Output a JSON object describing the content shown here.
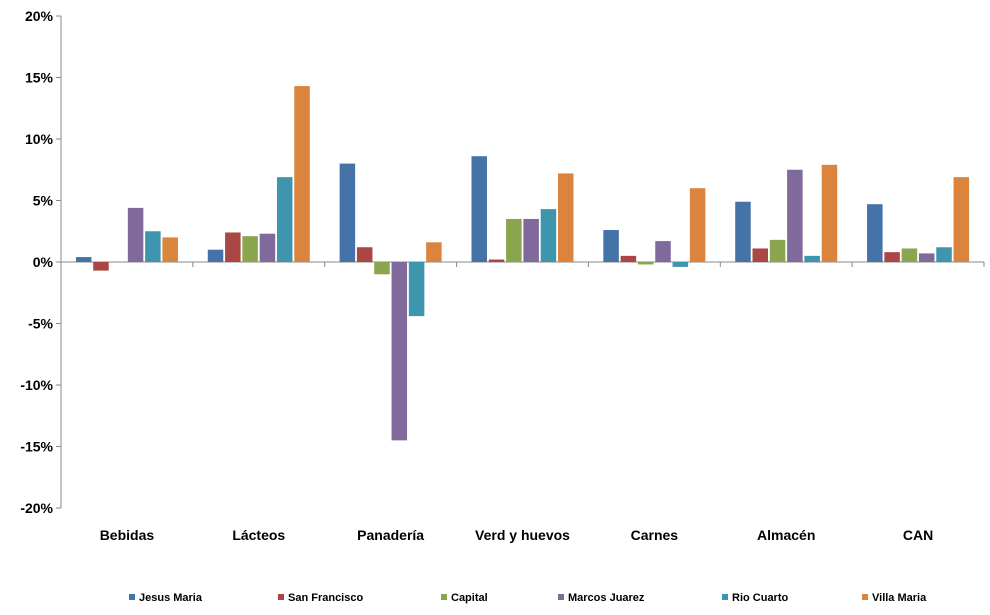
{
  "chart_data": {
    "type": "bar",
    "title": "",
    "xlabel": "",
    "ylabel": "",
    "ylim": [
      -20,
      20
    ],
    "y_ticks": [
      -20,
      -15,
      -10,
      -5,
      0,
      5,
      10,
      15,
      20
    ],
    "y_tick_labels": [
      "-20%",
      "-15%",
      "-10%",
      "-5%",
      "0%",
      "5%",
      "10%",
      "15%",
      "20%"
    ],
    "grid": false,
    "legend_position": "bottom",
    "categories": [
      "Bebidas",
      "Lácteos",
      "Panadería",
      "Verd y huevos",
      "Carnes",
      "Almacén",
      "CAN"
    ],
    "series": [
      {
        "name": "Jesus Maria",
        "color": "#4572A7",
        "values": [
          0.4,
          1.0,
          8.0,
          8.6,
          2.6,
          4.9,
          4.7
        ]
      },
      {
        "name": "San Francisco",
        "color": "#AA4643",
        "values": [
          -0.7,
          2.4,
          1.2,
          0.2,
          0.5,
          1.1,
          0.8
        ]
      },
      {
        "name": "Capital",
        "color": "#89A54E",
        "values": [
          0.0,
          2.1,
          -1.0,
          3.5,
          -0.2,
          1.8,
          1.1
        ]
      },
      {
        "name": "Marcos Juarez",
        "color": "#80699B",
        "values": [
          4.4,
          2.3,
          -14.5,
          3.5,
          1.7,
          7.5,
          0.7
        ]
      },
      {
        "name": "Rio Cuarto",
        "color": "#3D96AE",
        "values": [
          2.5,
          6.9,
          -4.4,
          4.3,
          -0.4,
          0.5,
          1.2
        ]
      },
      {
        "name": "Villa Maria",
        "color": "#DB843D",
        "values": [
          2.0,
          14.3,
          1.6,
          7.2,
          6.0,
          7.9,
          6.9
        ]
      }
    ]
  }
}
